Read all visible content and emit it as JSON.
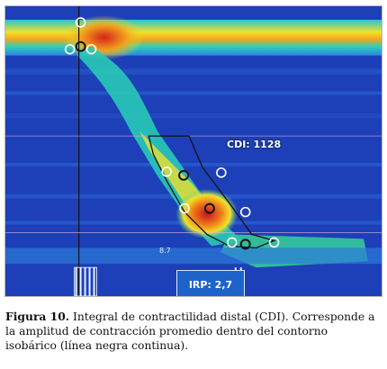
{
  "figure": {
    "overlay": {
      "cdi_text": "CDI: 1128",
      "irp_text": "IRP: 2,7",
      "small_value": "8.7"
    },
    "caption": {
      "label": "Figura 10.",
      "text": " Integral de contractilidad distal (CDI). Corresponde a la amplitud de contracción promedio dentro del contorno isobárico (línea negra continua)."
    },
    "colors": {
      "background": "#1d3fb8",
      "low_pressure": "#1f5fd0",
      "mid_pressure": "#2cc9c4",
      "high_pressure": "#f0e21a",
      "peak_pressure": "#d5271b",
      "marker": "#ffffff",
      "contour": "#111111"
    }
  }
}
